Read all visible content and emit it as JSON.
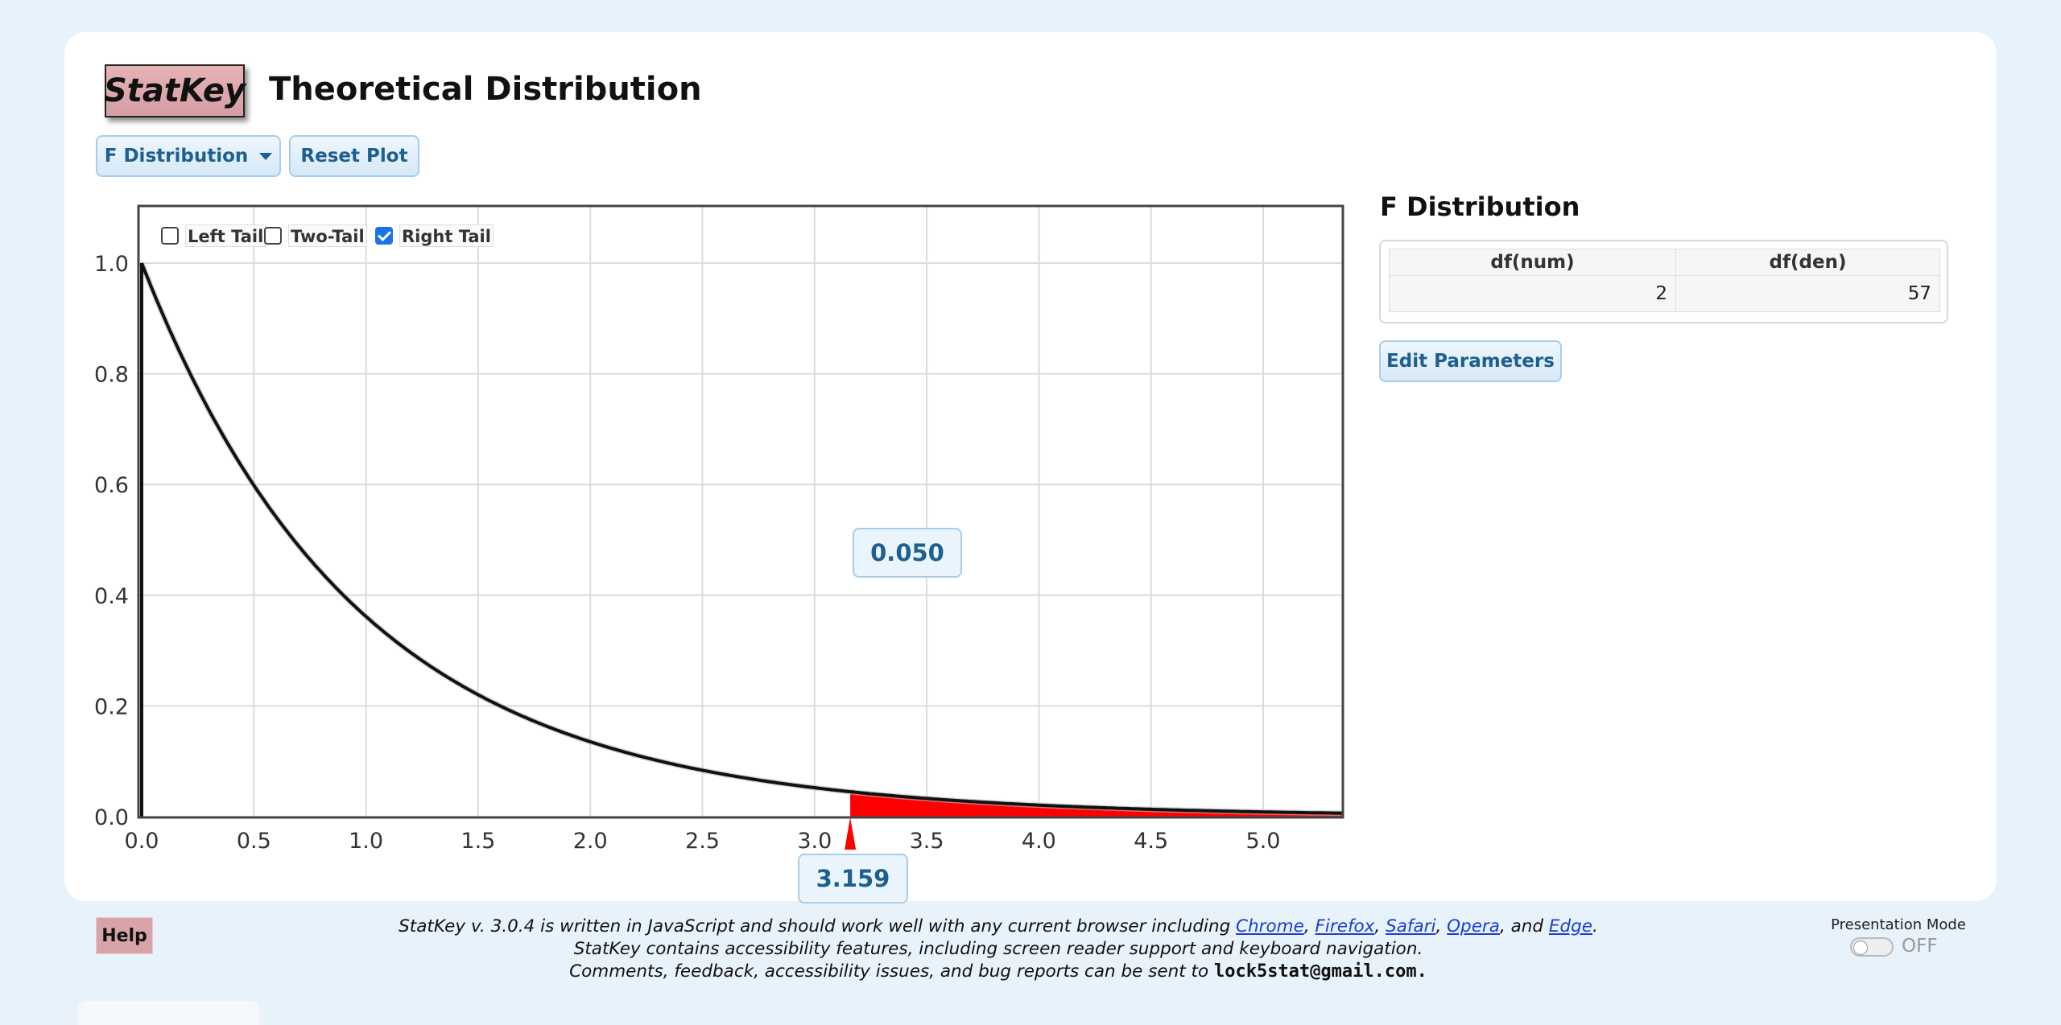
{
  "app": {
    "logo_text": "StatKey",
    "title": "Theoretical Distribution"
  },
  "toolbar": {
    "distribution_label": "F Distribution",
    "reset_label": "Reset Plot"
  },
  "tails": [
    {
      "label": "Left Tail",
      "checked": false
    },
    {
      "label": "Two-Tail",
      "checked": false
    },
    {
      "label": "Right Tail",
      "checked": true
    }
  ],
  "plot": {
    "probability": "0.050",
    "cutoff": "3.159",
    "shade_color": "#ff0000",
    "curve_color": "#111111"
  },
  "chart_data": {
    "type": "area",
    "distribution": "F",
    "df_num": 2,
    "df_den": 57,
    "x_ticks": [
      "0.0",
      "0.5",
      "1.0",
      "1.5",
      "2.0",
      "2.5",
      "3.0",
      "3.5",
      "4.0",
      "4.5",
      "5.0"
    ],
    "y_ticks": [
      "0.0",
      "0.2",
      "0.4",
      "0.6",
      "0.8",
      "1.0"
    ],
    "xlim": [
      0,
      5.35
    ],
    "ylim": [
      0,
      1.1
    ],
    "grid": true,
    "shaded_region": {
      "tail": "right",
      "from": 3.159,
      "to": 5.35,
      "area": 0.05
    }
  },
  "params": {
    "title": "F Distribution",
    "columns": [
      "df(num)",
      "df(den)"
    ],
    "values": [
      "2",
      "57"
    ],
    "edit_label": "Edit Parameters"
  },
  "help_label": "Help",
  "footer": {
    "line1_prefix": "StatKey v. 3.0.4 is written in JavaScript and should work well with any current browser including ",
    "browsers": [
      "Chrome",
      "Firefox",
      "Safari",
      "Opera",
      "Edge"
    ],
    "sep1": ", ",
    "sep2": ", ",
    "sep3": ", ",
    "sep4": ", and ",
    "period": ".",
    "line2": "StatKey contains accessibility features, including screen reader support and keyboard navigation.",
    "line3_prefix": "Comments, feedback, accessibility issues, and bug reports can be sent to ",
    "email": "lock5stat@gmail.com."
  },
  "presentation": {
    "label": "Presentation Mode",
    "state": "OFF"
  }
}
